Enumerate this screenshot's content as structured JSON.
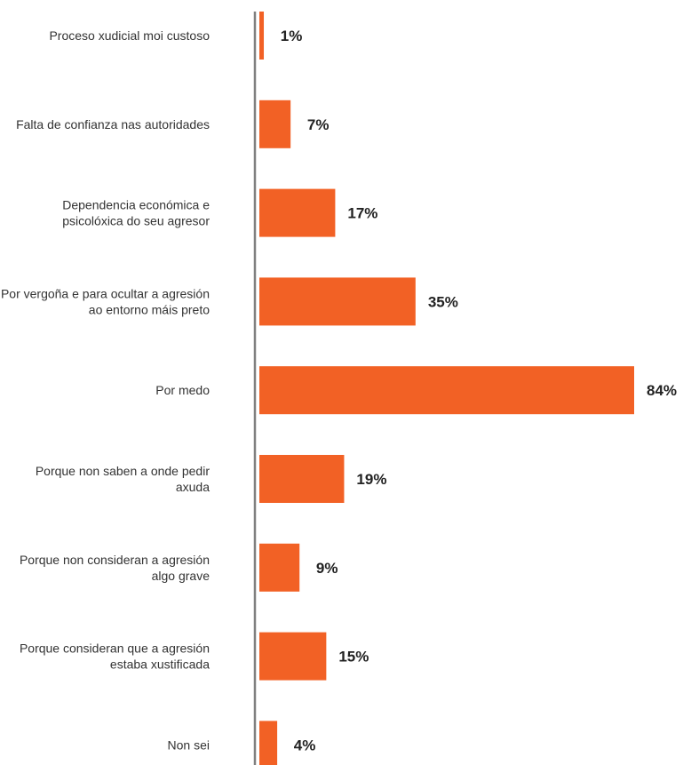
{
  "chart_data": {
    "type": "bar",
    "orientation": "horizontal",
    "categories": [
      [
        "Proceso xudicial moi custoso"
      ],
      [
        "Falta de confianza nas autoridades"
      ],
      [
        "Dependencia económica e",
        "psicolóxica do seu agresor"
      ],
      [
        "Por vergoña e para ocultar a agresión",
        "ao entorno máis preto"
      ],
      [
        "Por medo"
      ],
      [
        "Porque non saben a onde pedir",
        "axuda"
      ],
      [
        "Porque non consideran a agresión",
        "algo grave"
      ],
      [
        "Porque consideran que a agresión",
        "estaba xustificada"
      ],
      [
        "Non sei"
      ]
    ],
    "values": [
      1,
      7,
      17,
      35,
      84,
      19,
      9,
      15,
      4
    ],
    "value_labels": [
      "1%",
      "7%",
      "17%",
      "35%",
      "84%",
      "19%",
      "9%",
      "15%",
      "4%"
    ],
    "xlim": [
      0,
      84
    ],
    "title": "",
    "xlabel": "",
    "ylabel": "",
    "grid": false,
    "legend": "none",
    "colors": {
      "bar": "#f26125",
      "axis": "#7f7f7f"
    }
  }
}
